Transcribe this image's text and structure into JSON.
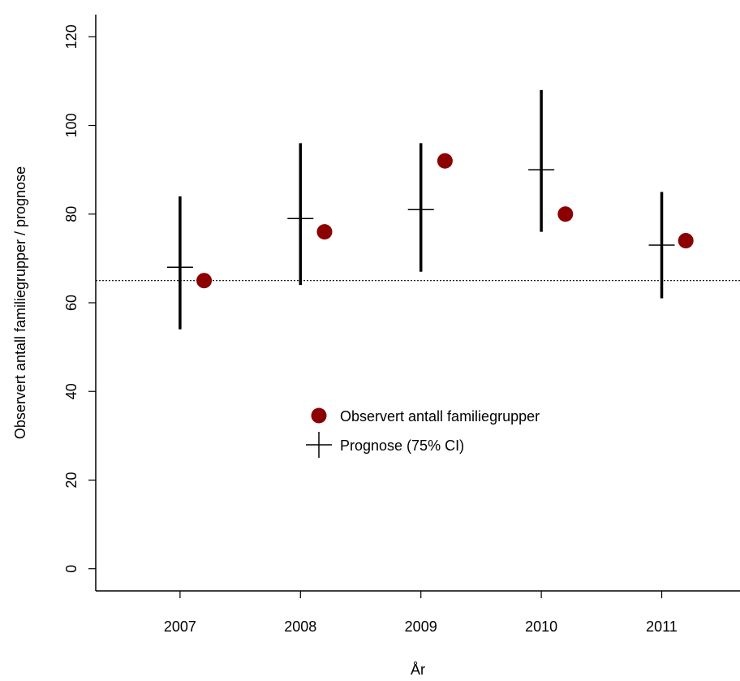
{
  "chart_data": {
    "type": "scatter",
    "ylabel": "Observert antall familiegrupper / prognose",
    "xlabel": "År",
    "xlim": [
      2006.3,
      2011.65
    ],
    "xticks": [
      2007,
      2008,
      2009,
      2010,
      2011
    ],
    "ylim": [
      -5,
      125
    ],
    "yticks": [
      0,
      20,
      40,
      60,
      80,
      100,
      120
    ],
    "hline": 65,
    "legend_position": "center",
    "series": [
      {
        "name": "Observert antall familiegrupper",
        "color": "#8b0000",
        "marker": "circle",
        "x": [
          2007.2,
          2008.2,
          2009.2,
          2010.2,
          2011.2
        ],
        "values": [
          65,
          76,
          92,
          80,
          74
        ]
      },
      {
        "name": "Prognose (75% CI)",
        "color": "#000000",
        "marker": "cross",
        "x": [
          2007,
          2008,
          2009,
          2010,
          2011
        ],
        "values": [
          68,
          79,
          81,
          90,
          73
        ],
        "lower": [
          54,
          64,
          67,
          76,
          61
        ],
        "upper": [
          84,
          96,
          96,
          108,
          85
        ]
      }
    ]
  }
}
